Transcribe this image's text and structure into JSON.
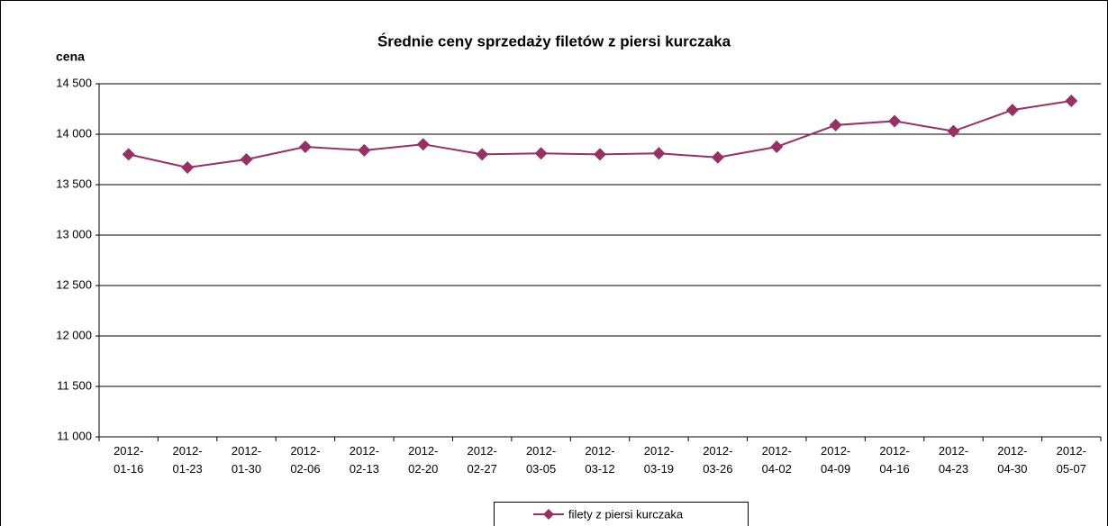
{
  "chart_data": {
    "type": "line",
    "title": "Średnie ceny sprzedaży filetów z piersi kurczaka",
    "y_label": "cena",
    "categories": [
      "2012-01-16",
      "2012-01-23",
      "2012-01-30",
      "2012-02-06",
      "2012-02-13",
      "2012-02-20",
      "2012-02-27",
      "2012-03-05",
      "2012-03-12",
      "2012-03-19",
      "2012-03-26",
      "2012-04-02",
      "2012-04-09",
      "2012-04-16",
      "2012-04-23",
      "2012-04-30",
      "2012-05-07"
    ],
    "series": [
      {
        "name": "filety z piersi kurczaka",
        "color": "#953163",
        "values": [
          13800,
          13670,
          13750,
          13875,
          13840,
          13900,
          13800,
          13810,
          13800,
          13810,
          13770,
          13875,
          14090,
          14130,
          14030,
          14240,
          14330
        ]
      }
    ],
    "ylim": [
      11000,
      14500
    ],
    "yticks": [
      {
        "value": 11000,
        "label": "11 000"
      },
      {
        "value": 11500,
        "label": "11 500"
      },
      {
        "value": 12000,
        "label": "12 000"
      },
      {
        "value": 12500,
        "label": "12 500"
      },
      {
        "value": 13000,
        "label": "13 000"
      },
      {
        "value": 13500,
        "label": "13 500"
      },
      {
        "value": 14000,
        "label": "14 000"
      },
      {
        "value": 14500,
        "label": "14 500"
      }
    ],
    "grid": true,
    "legend": "bottom"
  }
}
